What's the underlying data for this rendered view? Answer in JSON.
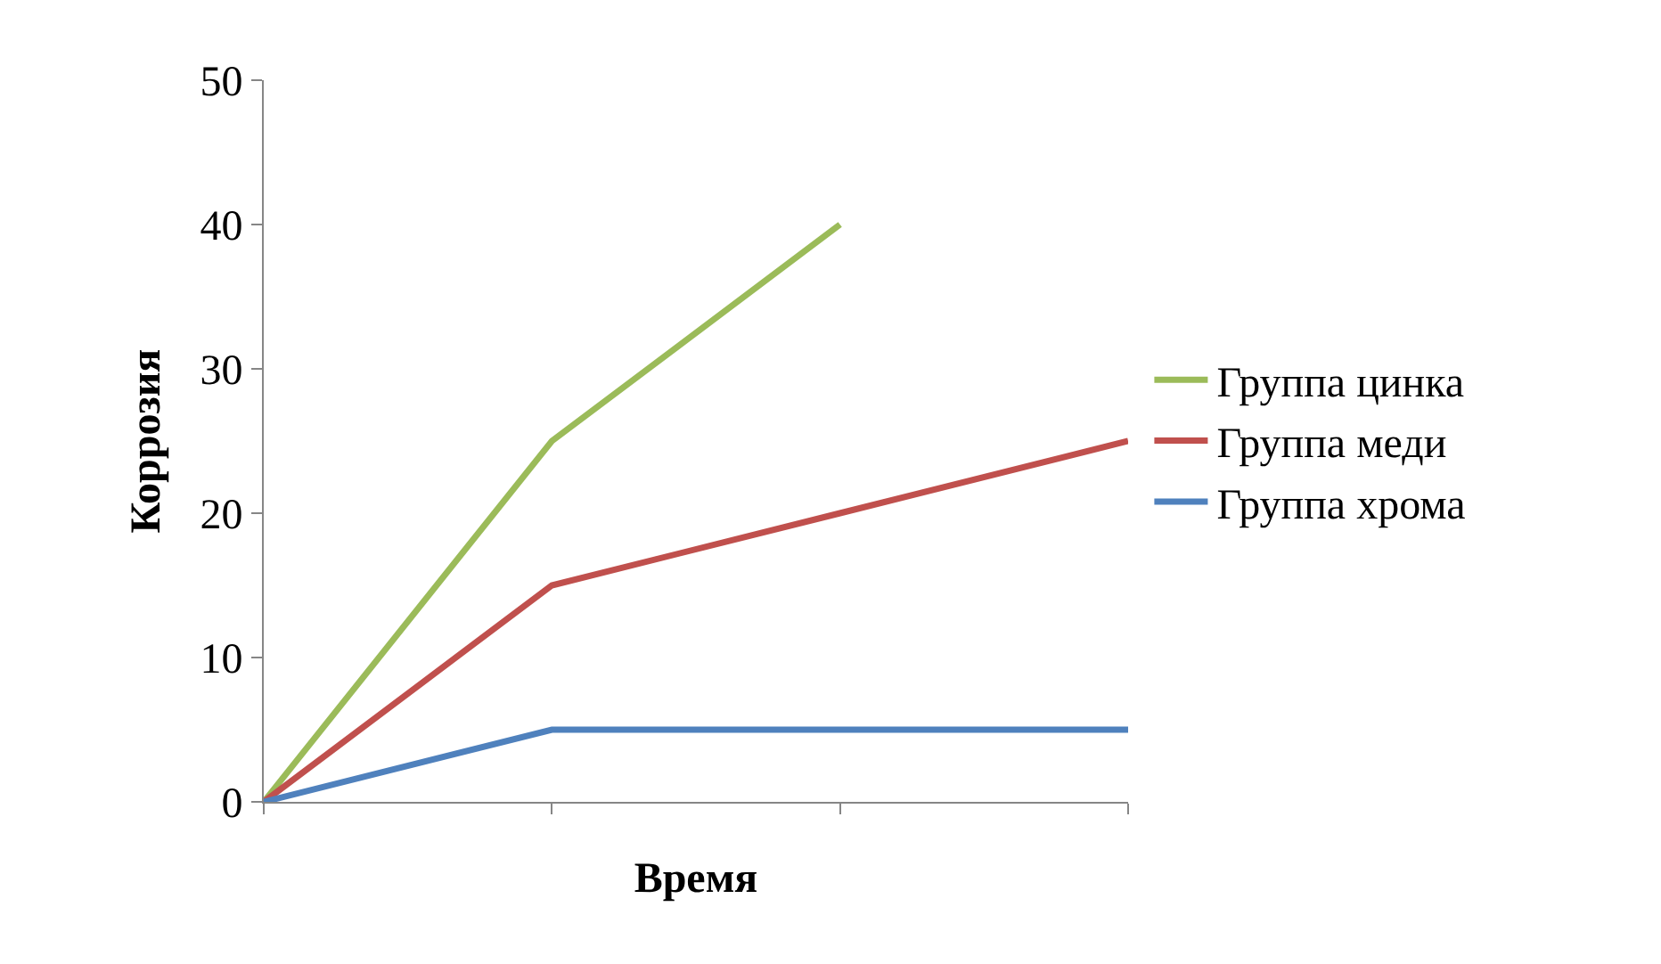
{
  "chart_data": {
    "type": "line",
    "xlabel": "Время",
    "ylabel": "Коррозия",
    "categories": [
      null,
      null,
      null,
      null
    ],
    "ylim": [
      0,
      50
    ],
    "yticks": [
      0,
      10,
      20,
      30,
      40,
      50
    ],
    "legend": "right",
    "marker": "none",
    "line_style": "solid",
    "tick_labels": "y",
    "series": [
      {
        "name": "Группа цинка",
        "color": "#9bbb59",
        "values": [
          0,
          25,
          40,
          null
        ]
      },
      {
        "name": "Группа меди",
        "color": "#c0504d",
        "values": [
          0,
          15,
          20,
          25
        ]
      },
      {
        "name": "Группа хрома",
        "color": "#4f81bd",
        "values": [
          0,
          5,
          5,
          5
        ]
      }
    ]
  }
}
